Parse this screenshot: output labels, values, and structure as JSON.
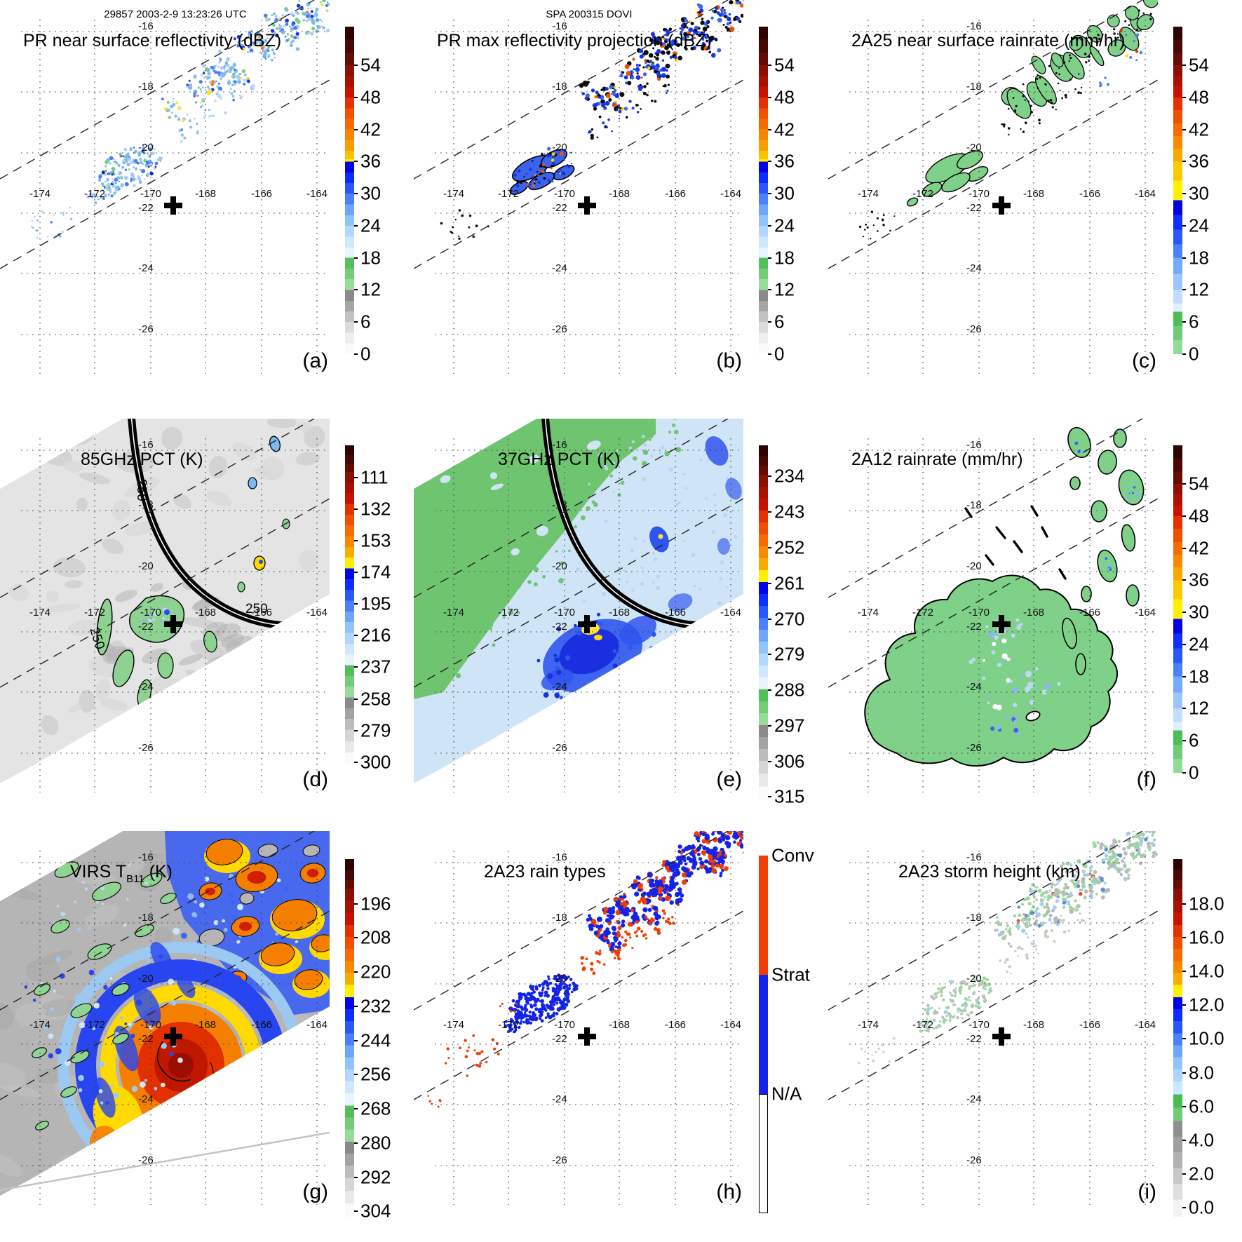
{
  "header": {
    "left": "29857 2003-2-9 13:23:26 UTC",
    "center": "SPA 200315 DOVI"
  },
  "axes": {
    "lon_ticks": [
      "-174",
      "-172",
      "-170",
      "-168",
      "-166",
      "-164"
    ],
    "lat_ticks": [
      "-16",
      "-18",
      "-20",
      "-22",
      "-24",
      "-26"
    ]
  },
  "colorbar_palettes": {
    "dbz": [
      [
        "#2b0402",
        0.04
      ],
      [
        "#470803",
        0.08
      ],
      [
        "#630c04",
        0.118
      ],
      [
        "#8a1004",
        0.15
      ],
      [
        "#a81102",
        0.183
      ],
      [
        "#c91100",
        0.216
      ],
      [
        "#e63000",
        0.249
      ],
      [
        "#f15100",
        0.281
      ],
      [
        "#f66a00",
        0.314
      ],
      [
        "#f88500",
        0.347
      ],
      [
        "#fa9e00",
        0.379
      ],
      [
        "#fcc100",
        0.405
      ],
      [
        "#ffef00",
        0.412
      ],
      [
        "#0004e8",
        0.445
      ],
      [
        "#0d2cff",
        0.478
      ],
      [
        "#2a56ff",
        0.51
      ],
      [
        "#4d80ff",
        0.543
      ],
      [
        "#6ea6ff",
        0.576
      ],
      [
        "#90c4ff",
        0.608
      ],
      [
        "#b2d8ff",
        0.641
      ],
      [
        "#cfe8ff",
        0.674
      ],
      [
        "#e9f4ff",
        0.706
      ],
      [
        "#54c05a",
        0.739
      ],
      [
        "#74ce78",
        0.771
      ],
      [
        "#98dd9a",
        0.804
      ],
      [
        "#8a8a8a",
        0.837
      ],
      [
        "#a5a5a5",
        0.869
      ],
      [
        "#c2c2c2",
        0.902
      ],
      [
        "#dcdcdc",
        0.935
      ],
      [
        "#eeeeee",
        0.967
      ],
      [
        "#fafafa",
        1.0
      ]
    ],
    "rain": [
      [
        "#2b0402",
        0.04
      ],
      [
        "#470803",
        0.08
      ],
      [
        "#630c04",
        0.118
      ],
      [
        "#8a1004",
        0.15
      ],
      [
        "#a81102",
        0.183
      ],
      [
        "#c91100",
        0.216
      ],
      [
        "#e63000",
        0.255
      ],
      [
        "#f04e00",
        0.295
      ],
      [
        "#f66c00",
        0.334
      ],
      [
        "#f88900",
        0.373
      ],
      [
        "#faa800",
        0.412
      ],
      [
        "#fcc900",
        0.47
      ],
      [
        "#ffef00",
        0.53
      ],
      [
        "#0004e0",
        0.575
      ],
      [
        "#0f2eff",
        0.62
      ],
      [
        "#2b57ff",
        0.665
      ],
      [
        "#4d80ff",
        0.706
      ],
      [
        "#74a9ff",
        0.755
      ],
      [
        "#9cc6ff",
        0.804
      ],
      [
        "#c2ddff",
        0.845
      ],
      [
        "#e2efff",
        0.87
      ],
      [
        "#4dbd55",
        0.914
      ],
      [
        "#6fcb74",
        0.957
      ],
      [
        "#94da97",
        1.0
      ]
    ],
    "pct": [
      [
        "#2b0402",
        0.03
      ],
      [
        "#470803",
        0.058
      ],
      [
        "#630c04",
        0.083
      ],
      [
        "#8a1004",
        0.117
      ],
      [
        "#a81102",
        0.15
      ],
      [
        "#c91100",
        0.184
      ],
      [
        "#e63000",
        0.218
      ],
      [
        "#f04e00",
        0.251
      ],
      [
        "#f66c00",
        0.285
      ],
      [
        "#f88900",
        0.319
      ],
      [
        "#faab00",
        0.352
      ],
      [
        "#ffef00",
        0.386
      ],
      [
        "#0004e8",
        0.42
      ],
      [
        "#0d2cff",
        0.453
      ],
      [
        "#2a56ff",
        0.487
      ],
      [
        "#4d80ff",
        0.521
      ],
      [
        "#6ea6ff",
        0.554
      ],
      [
        "#90c4ff",
        0.588
      ],
      [
        "#b2d8ff",
        0.622
      ],
      [
        "#cfe8ff",
        0.655
      ],
      [
        "#e9f4ff",
        0.689
      ],
      [
        "#52bf58",
        0.723
      ],
      [
        "#72cd76",
        0.756
      ],
      [
        "#97dc99",
        0.79
      ],
      [
        "#8a8a8a",
        0.824
      ],
      [
        "#a3a3a3",
        0.857
      ],
      [
        "#bcbcbc",
        0.891
      ],
      [
        "#d5d5d5",
        0.927
      ],
      [
        "#e9e9e9",
        0.963
      ],
      [
        "#fafafa",
        1.0
      ]
    ],
    "height": [
      [
        "#2b0402",
        0.03
      ],
      [
        "#470803",
        0.058
      ],
      [
        "#630c04",
        0.083
      ],
      [
        "#8a1004",
        0.117
      ],
      [
        "#a81102",
        0.15
      ],
      [
        "#c91100",
        0.184
      ],
      [
        "#e63000",
        0.218
      ],
      [
        "#f04e00",
        0.251
      ],
      [
        "#f66c00",
        0.285
      ],
      [
        "#f88900",
        0.319
      ],
      [
        "#faab00",
        0.352
      ],
      [
        "#ffef00",
        0.386
      ],
      [
        "#0004e8",
        0.42
      ],
      [
        "#0d2cff",
        0.453
      ],
      [
        "#2a56ff",
        0.487
      ],
      [
        "#4d80ff",
        0.521
      ],
      [
        "#6ea6ff",
        0.554
      ],
      [
        "#90c4ff",
        0.588
      ],
      [
        "#aed5ff",
        0.622
      ],
      [
        "#cde7ff",
        0.658
      ],
      [
        "#49bd52",
        0.695
      ],
      [
        "#6fcc74",
        0.732
      ],
      [
        "#8f8f8f",
        0.776
      ],
      [
        "#9f9f9f",
        0.82
      ],
      [
        "#b1b1b1",
        0.864
      ],
      [
        "#c7c7c7",
        0.908
      ],
      [
        "#dedede",
        0.952
      ],
      [
        "#f3f3f3",
        1.0
      ]
    ]
  },
  "rain_type_colors": {
    "conv": "#f23d00",
    "strat": "#1423e6",
    "na": "#ffffff"
  },
  "panels": [
    {
      "letter": "(a)",
      "title_main": "PR near surface reflectivity (dBZ)",
      "title_sub": "",
      "title_end": "",
      "colorbar": {
        "palette": "dbz",
        "ticks": [
          "54",
          "48",
          "42",
          "36",
          "30",
          "24",
          "18",
          "12",
          "6",
          "0"
        ]
      }
    },
    {
      "letter": "(b)",
      "title_main": "PR max reflectivity projection (dBZ)",
      "title_sub": "",
      "title_end": "",
      "colorbar": {
        "palette": "dbz",
        "ticks": [
          "54",
          "48",
          "42",
          "36",
          "30",
          "24",
          "18",
          "12",
          "6",
          "0"
        ]
      }
    },
    {
      "letter": "(c)",
      "title_main": "2A25 near surface rainrate (mm/hr)",
      "title_sub": "",
      "title_end": "",
      "colorbar": {
        "palette": "rain",
        "ticks": [
          "54",
          "48",
          "42",
          "36",
          "30",
          "24",
          "18",
          "12",
          "6",
          "0"
        ]
      }
    },
    {
      "letter": "(d)",
      "title_main": "85GHz PCT (K)",
      "title_sub": "",
      "title_end": "",
      "colorbar": {
        "palette": "pct",
        "ticks": [
          "111",
          "132",
          "153",
          "174",
          "195",
          "216",
          "237",
          "258",
          "279",
          "300"
        ]
      },
      "contour_labels": [
        "250",
        "250",
        "250"
      ]
    },
    {
      "letter": "(e)",
      "title_main": "37GHz PCT (K)",
      "title_sub": "",
      "title_end": "",
      "colorbar": {
        "palette": "pct",
        "ticks": [
          "234",
          "243",
          "252",
          "261",
          "270",
          "279",
          "288",
          "297",
          "306",
          "315"
        ]
      }
    },
    {
      "letter": "(f)",
      "title_main": "2A12 rainrate (mm/hr)",
      "title_sub": "",
      "title_end": "",
      "colorbar": {
        "palette": "rain",
        "ticks": [
          "54",
          "48",
          "42",
          "36",
          "30",
          "24",
          "18",
          "12",
          "6",
          "0"
        ]
      }
    },
    {
      "letter": "(g)",
      "title_main": "VIRS T",
      "title_sub": "B11",
      "title_end": " (K)",
      "colorbar": {
        "palette": "pct",
        "ticks": [
          "196",
          "208",
          "220",
          "232",
          "244",
          "256",
          "268",
          "280",
          "292",
          "304"
        ]
      }
    },
    {
      "letter": "(h)",
      "title_main": "2A23 rain types",
      "title_sub": "",
      "title_end": "",
      "colorbar": {
        "labels": [
          "Conv",
          "Strat",
          "N/A"
        ]
      }
    },
    {
      "letter": "(i)",
      "title_main": "2A23 storm height (km)",
      "title_sub": "",
      "title_end": "",
      "colorbar": {
        "palette": "height",
        "ticks": [
          "18.0",
          "16.0",
          "14.0",
          "12.0",
          "10.0",
          "8.0",
          "6.0",
          "4.0",
          "2.0",
          "0.0"
        ]
      }
    }
  ]
}
